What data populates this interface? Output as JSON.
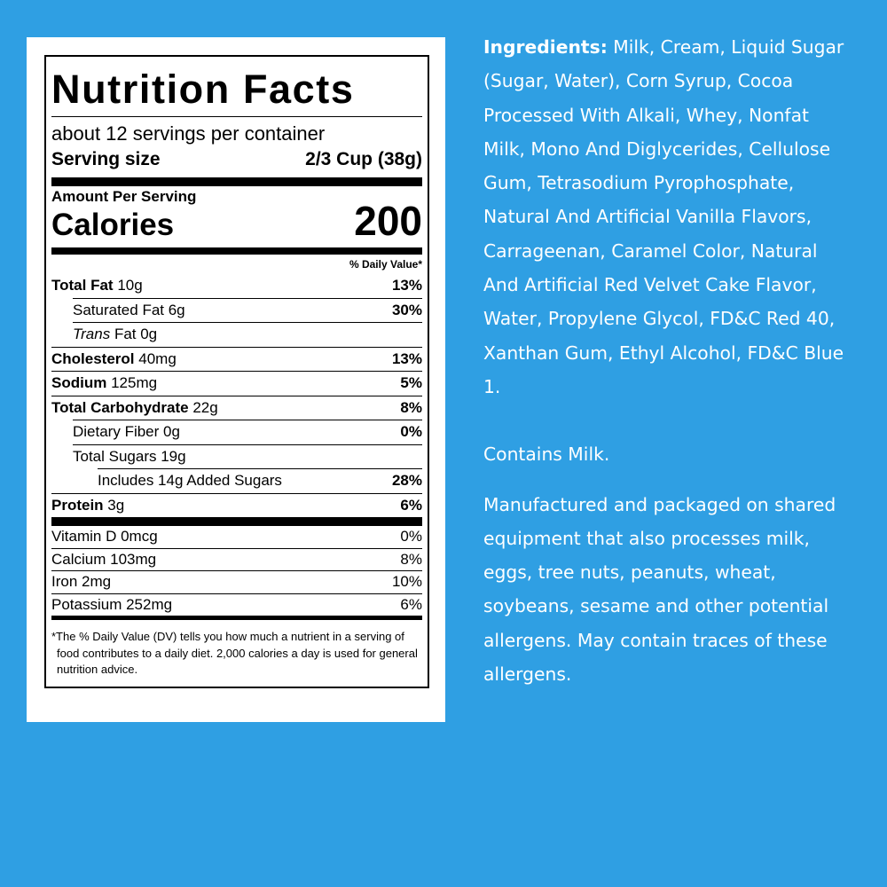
{
  "label": {
    "title": "Nutrition Facts",
    "servings": "about 12 servings per container",
    "serving_size_label": "Serving size",
    "serving_size": "2/3 Cup (38g)",
    "amount_per_serving": "Amount Per Serving",
    "calories_label": "Calories",
    "calories": 200,
    "dv_header": "% Daily Value*",
    "nutrients": [
      {
        "name": "Total Fat",
        "amount": "10g",
        "dv": "13%"
      },
      {
        "name": "Saturated Fat 6g",
        "dv": "30%"
      },
      {
        "name_italic": "Trans",
        "name": "Fat 0g"
      },
      {
        "name": "Cholesterol",
        "amount": "40mg",
        "dv": "13%"
      },
      {
        "name": "Sodium",
        "amount": "125mg",
        "dv": "5%"
      },
      {
        "name": "Total Carbohydrate",
        "amount": "22g",
        "dv": "8%"
      },
      {
        "name": "Dietary Fiber 0g",
        "dv": "0%"
      },
      {
        "name": "Total Sugars 19g"
      },
      {
        "name": "Includes 14g Added Sugars",
        "dv": "28%"
      },
      {
        "name": "Protein",
        "amount": "3g",
        "dv": "6%"
      }
    ],
    "vitamins": [
      {
        "name": "Vitamin D 0mcg",
        "dv": "0%"
      },
      {
        "name": "Calcium 103mg",
        "dv": "8%"
      },
      {
        "name": "Iron 2mg",
        "dv": "10%"
      },
      {
        "name": "Potassium 252mg",
        "dv": "6%"
      }
    ],
    "footnote": "*The % Daily Value (DV) tells you how much a nutrient in a serving of food contributes to a daily diet. 2,000 calories a day is used for general nutrition advice."
  },
  "ingredients": {
    "heading": "Ingredients:",
    "text": "Milk, Cream, Liquid Sugar (Sugar, Water), Corn Syrup, Cocoa Processed With Alkali, Whey, Nonfat Milk, Mono And Diglycerides, Cellulose Gum, Tetrasodium Pyrophosphate, Natural And Artificial Vanilla Flavors, Carrageenan, Caramel Color, Natural And Artificial Red Velvet Cake Flavor, Water, Propylene Glycol, FD&C Red 40, Xanthan Gum, Ethyl Alcohol, FD&C Blue 1."
  },
  "contains": "Contains Milk.",
  "manufactured": "Manufactured and packaged on shared equipment that also processes milk, eggs, tree nuts, peanuts, wheat, soybeans, sesame and other potential allergens. May contain traces of these allergens."
}
